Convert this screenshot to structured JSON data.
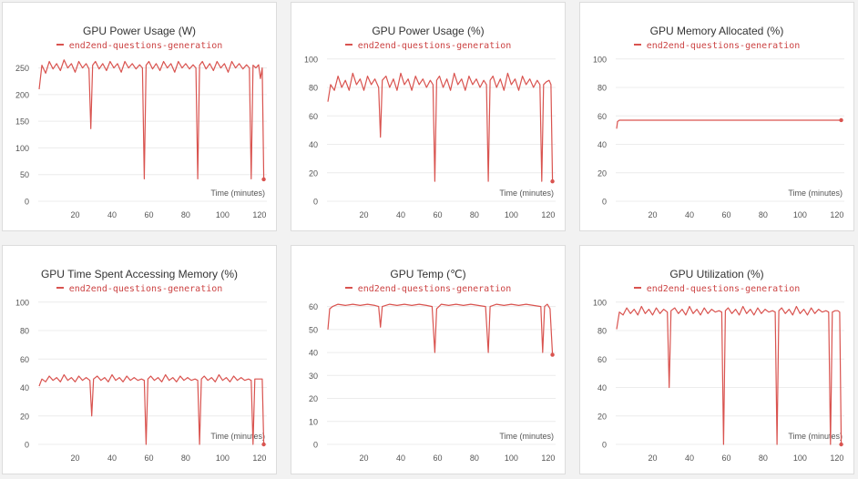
{
  "colors": {
    "series": "#d9534f",
    "grid": "#ececec",
    "axis_text": "#555555"
  },
  "chart_data": [
    {
      "type": "line",
      "title": "GPU Power Usage (W)",
      "xlabel": "Time (minutes)",
      "ylabel": "",
      "xlim": [
        0,
        124
      ],
      "ylim": [
        0,
        280
      ],
      "yticks": [
        0,
        50,
        100,
        150,
        200,
        250
      ],
      "xticks": [
        20,
        40,
        60,
        80,
        100,
        120
      ],
      "series": [
        {
          "name": "end2end-questions-generation",
          "x": [
            0.5,
            2,
            4,
            6,
            8,
            10,
            12,
            14,
            16,
            18,
            20,
            22,
            24,
            26,
            27.5,
            28.5,
            29.5,
            31,
            33,
            35,
            37,
            39,
            41,
            43,
            45,
            47,
            49,
            51,
            53,
            55,
            56.5,
            57.5,
            58.5,
            60,
            62,
            64,
            66,
            68,
            70,
            72,
            74,
            76,
            78,
            80,
            82,
            84,
            85.5,
            86.5,
            87.5,
            89,
            91,
            93,
            95,
            97,
            99,
            101,
            103,
            105,
            107,
            109,
            111,
            113,
            114.5,
            115.5,
            116.5,
            118,
            119.5,
            120.5,
            121.5,
            122.3
          ],
          "y": [
            210,
            255,
            240,
            262,
            248,
            258,
            245,
            265,
            250,
            258,
            242,
            262,
            250,
            258,
            248,
            136,
            255,
            262,
            248,
            258,
            245,
            262,
            250,
            258,
            242,
            262,
            250,
            258,
            248,
            256,
            250,
            42,
            255,
            262,
            248,
            258,
            245,
            262,
            250,
            258,
            242,
            262,
            250,
            258,
            248,
            256,
            250,
            42,
            255,
            262,
            248,
            258,
            245,
            262,
            250,
            258,
            242,
            262,
            250,
            258,
            248,
            256,
            250,
            42,
            255,
            250,
            256,
            230,
            250,
            41
          ]
        }
      ]
    },
    {
      "type": "line",
      "title": "GPU Power Usage (%)",
      "xlabel": "Time (minutes)",
      "ylabel": "",
      "xlim": [
        0,
        124
      ],
      "ylim": [
        0,
        105
      ],
      "yticks": [
        0,
        20,
        40,
        60,
        80,
        100
      ],
      "xticks": [
        20,
        40,
        60,
        80,
        100,
        120
      ],
      "series": [
        {
          "name": "end2end-questions-generation",
          "x": [
            0.5,
            2,
            4,
            6,
            8,
            10,
            12,
            14,
            16,
            18,
            20,
            22,
            24,
            26,
            28,
            29,
            30,
            32,
            34,
            36,
            38,
            40,
            42,
            44,
            46,
            48,
            50,
            52,
            54,
            56,
            57.5,
            58.5,
            59.5,
            61,
            63,
            65,
            67,
            69,
            71,
            73,
            75,
            77,
            79,
            81,
            83,
            85,
            86.5,
            87.5,
            88.5,
            90,
            92,
            94,
            96,
            98,
            100,
            102,
            104,
            106,
            108,
            110,
            112,
            114,
            115.5,
            116.5,
            117.5,
            119,
            120.5,
            121.5,
            122.3
          ],
          "y": [
            70,
            82,
            78,
            88,
            80,
            85,
            78,
            90,
            82,
            86,
            78,
            88,
            82,
            86,
            80,
            45,
            85,
            88,
            80,
            86,
            78,
            90,
            82,
            86,
            78,
            88,
            82,
            86,
            80,
            85,
            82,
            14,
            85,
            88,
            80,
            86,
            78,
            90,
            82,
            86,
            78,
            88,
            82,
            86,
            80,
            85,
            82,
            14,
            85,
            88,
            80,
            86,
            78,
            90,
            82,
            86,
            78,
            88,
            82,
            86,
            80,
            85,
            82,
            14,
            82,
            84,
            85,
            82,
            14
          ]
        }
      ]
    },
    {
      "type": "line",
      "title": "GPU Memory Allocated (%)",
      "xlabel": "Time (minutes)",
      "ylabel": "",
      "xlim": [
        0,
        124
      ],
      "ylim": [
        0,
        105
      ],
      "yticks": [
        0,
        20,
        40,
        60,
        80,
        100
      ],
      "xticks": [
        20,
        40,
        60,
        80,
        100,
        120
      ],
      "series": [
        {
          "name": "end2end-questions-generation",
          "x": [
            0.5,
            1,
            2,
            122.3
          ],
          "y": [
            51,
            56,
            57,
            57
          ]
        }
      ]
    },
    {
      "type": "line",
      "title": "GPU Time Spent Accessing Memory (%)",
      "xlabel": "Time (minutes)",
      "ylabel": "",
      "xlim": [
        0,
        124
      ],
      "ylim": [
        0,
        105
      ],
      "yticks": [
        0,
        20,
        40,
        60,
        80,
        100
      ],
      "xticks": [
        20,
        40,
        60,
        80,
        100,
        120
      ],
      "series": [
        {
          "name": "end2end-questions-generation",
          "x": [
            0.5,
            2,
            4,
            6,
            8,
            10,
            12,
            14,
            16,
            18,
            20,
            22,
            24,
            26,
            28,
            29,
            30,
            32,
            34,
            36,
            38,
            40,
            42,
            44,
            46,
            48,
            50,
            52,
            54,
            56,
            57.5,
            58.5,
            59.5,
            61,
            63,
            65,
            67,
            69,
            71,
            73,
            75,
            77,
            79,
            81,
            83,
            85,
            86.5,
            87.5,
            88.5,
            90,
            92,
            94,
            96,
            98,
            100,
            102,
            104,
            106,
            108,
            110,
            112,
            114,
            115.5,
            116.5,
            117.5,
            119,
            120.5,
            121.5,
            122.3
          ],
          "y": [
            41,
            46,
            44,
            48,
            45,
            47,
            44,
            49,
            45,
            47,
            44,
            48,
            45,
            47,
            45,
            20,
            46,
            48,
            45,
            47,
            44,
            49,
            45,
            47,
            44,
            48,
            45,
            47,
            45,
            46,
            45,
            0,
            46,
            48,
            45,
            47,
            44,
            49,
            45,
            47,
            44,
            48,
            45,
            47,
            45,
            46,
            45,
            0,
            46,
            48,
            45,
            47,
            44,
            49,
            45,
            47,
            44,
            48,
            45,
            47,
            45,
            46,
            45,
            0,
            46,
            46,
            46,
            46,
            0
          ]
        }
      ]
    },
    {
      "type": "line",
      "title": "GPU Temp (℃)",
      "xlabel": "Time (minutes)",
      "ylabel": "",
      "xlim": [
        0,
        124
      ],
      "ylim": [
        0,
        65
      ],
      "yticks": [
        0,
        10,
        20,
        30,
        40,
        50,
        60
      ],
      "xticks": [
        20,
        40,
        60,
        80,
        100,
        120
      ],
      "series": [
        {
          "name": "end2end-questions-generation",
          "x": [
            0.5,
            1.5,
            3,
            6,
            10,
            14,
            18,
            22,
            26,
            28,
            29,
            30,
            34,
            38,
            42,
            46,
            50,
            54,
            57,
            58.5,
            59.5,
            62,
            66,
            70,
            74,
            78,
            82,
            86,
            87.5,
            88.5,
            92,
            96,
            100,
            104,
            108,
            112,
            116,
            117,
            118,
            119.5,
            121,
            122.3
          ],
          "y": [
            50,
            59,
            60,
            61,
            60.5,
            61,
            60.5,
            61,
            60.5,
            60,
            51,
            60,
            61,
            60.5,
            61,
            60.5,
            61,
            60.5,
            60,
            40,
            59,
            61,
            60.5,
            61,
            60.5,
            61,
            60.5,
            60,
            40,
            60,
            61,
            60.5,
            61,
            60.5,
            61,
            60.5,
            60,
            40,
            60,
            61,
            59,
            39
          ]
        }
      ]
    },
    {
      "type": "line",
      "title": "GPU Utilization (%)",
      "xlabel": "Time (minutes)",
      "ylabel": "",
      "xlim": [
        0,
        124
      ],
      "ylim": [
        0,
        105
      ],
      "yticks": [
        0,
        20,
        40,
        60,
        80,
        100
      ],
      "xticks": [
        20,
        40,
        60,
        80,
        100,
        120
      ],
      "series": [
        {
          "name": "end2end-questions-generation",
          "x": [
            0.5,
            2,
            4,
            6,
            8,
            10,
            12,
            14,
            16,
            18,
            20,
            22,
            24,
            26,
            28,
            29,
            30,
            32,
            34,
            36,
            38,
            40,
            42,
            44,
            46,
            48,
            50,
            52,
            54,
            56,
            57.5,
            58.5,
            59.5,
            61,
            63,
            65,
            67,
            69,
            71,
            73,
            75,
            77,
            79,
            81,
            83,
            85,
            86.5,
            87.5,
            88.5,
            90,
            92,
            94,
            96,
            98,
            100,
            102,
            104,
            106,
            108,
            110,
            112,
            114,
            115.5,
            116.5,
            117.5,
            119,
            120.5,
            121.5,
            122.3
          ],
          "y": [
            81,
            93,
            91,
            96,
            92,
            95,
            91,
            97,
            92,
            95,
            91,
            96,
            92,
            95,
            93,
            40,
            94,
            96,
            92,
            95,
            91,
            97,
            92,
            95,
            91,
            96,
            92,
            95,
            93,
            94,
            93,
            0,
            94,
            96,
            92,
            95,
            91,
            97,
            92,
            95,
            91,
            96,
            92,
            95,
            93,
            94,
            93,
            0,
            94,
            96,
            92,
            95,
            91,
            97,
            92,
            95,
            91,
            96,
            92,
            95,
            93,
            94,
            93,
            0,
            93,
            94,
            94,
            93,
            0
          ]
        }
      ]
    }
  ]
}
